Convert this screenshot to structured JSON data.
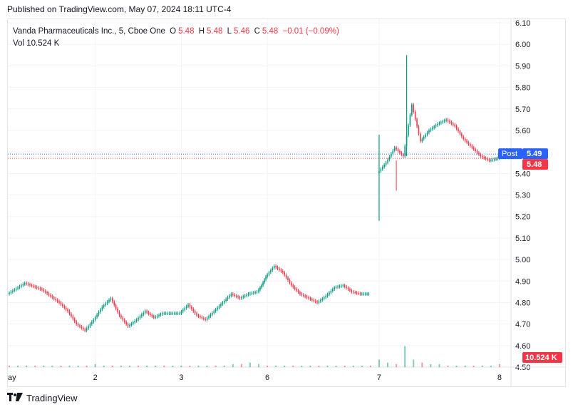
{
  "published": "Published on TradingView.com, May 07, 2024 18:11 UTC-4",
  "legend": {
    "symbol": "Vanda Pharmaceuticals Inc., 5, Cboe One",
    "open_label": "O",
    "open": "5.48",
    "high_label": "H",
    "high": "5.48",
    "low_label": "L",
    "low": "5.46",
    "close_label": "C",
    "close": "5.48",
    "change": "−0.01 (−0.09%)",
    "vol_label": "Vol",
    "vol": "10.524 K"
  },
  "footer": {
    "brand": "TradingView"
  },
  "colors": {
    "up": "#089981",
    "down": "#f23645",
    "post": "#2962ff",
    "grid": "#f0f3fa"
  },
  "chart_data": {
    "type": "candlestick",
    "y_ticks": [
      "6.10",
      "6.00",
      "5.90",
      "5.80",
      "5.70",
      "5.60",
      "5.50",
      "5.40",
      "5.30",
      "5.20",
      "5.10",
      "5.00",
      "4.90",
      "4.80",
      "4.70",
      "4.60",
      "4.50"
    ],
    "ylim": [
      4.5,
      6.1
    ],
    "x_ticks": [
      "ay",
      "2",
      "3",
      "6",
      "7",
      "8"
    ],
    "price_labels": {
      "post_label": "Post",
      "post": "5.49",
      "last": "5.48",
      "volume": "10.524 K"
    },
    "series": [
      {
        "name": "price",
        "points": [
          [
            0,
            4.84
          ],
          [
            2,
            4.89
          ],
          [
            4,
            4.86
          ],
          [
            6,
            4.8
          ],
          [
            7,
            4.76
          ],
          [
            8,
            4.7
          ],
          [
            9,
            4.67
          ],
          [
            10,
            4.72
          ],
          [
            11,
            4.78
          ],
          [
            12,
            4.82
          ],
          [
            13,
            4.74
          ],
          [
            14,
            4.69
          ],
          [
            15,
            4.72
          ],
          [
            16,
            4.76
          ],
          [
            17,
            4.73
          ],
          [
            18,
            4.75
          ],
          [
            20,
            4.75
          ],
          [
            21,
            4.79
          ],
          [
            22,
            4.74
          ],
          [
            23,
            4.72
          ],
          [
            24,
            4.76
          ],
          [
            25,
            4.8
          ],
          [
            26,
            4.84
          ],
          [
            27,
            4.82
          ],
          [
            28,
            4.84
          ],
          [
            29,
            4.85
          ],
          [
            29.5,
            4.88
          ],
          [
            30,
            4.92
          ],
          [
            31,
            4.97
          ],
          [
            32,
            4.94
          ],
          [
            33,
            4.88
          ],
          [
            34,
            4.84
          ],
          [
            35,
            4.82
          ],
          [
            36,
            4.8
          ],
          [
            37,
            4.83
          ],
          [
            38,
            4.87
          ],
          [
            39,
            4.88
          ],
          [
            40,
            4.85
          ],
          [
            41,
            4.84
          ],
          [
            42,
            4.84
          ]
        ]
      },
      {
        "name": "day7",
        "points": [
          [
            43,
            5.4
          ],
          [
            44,
            5.45
          ],
          [
            45,
            5.52
          ],
          [
            46,
            5.48
          ],
          [
            47,
            5.72
          ],
          [
            48,
            5.55
          ],
          [
            49,
            5.6
          ],
          [
            50,
            5.63
          ],
          [
            51,
            5.65
          ],
          [
            52,
            5.62
          ],
          [
            53,
            5.56
          ],
          [
            54,
            5.52
          ],
          [
            55,
            5.48
          ],
          [
            56,
            5.46
          ],
          [
            57,
            5.47
          ],
          [
            58,
            5.5
          ]
        ]
      }
    ],
    "volume": [
      1,
      1,
      1,
      1,
      1,
      1,
      1,
      1,
      1,
      1,
      2,
      1,
      1,
      1,
      1,
      1,
      1,
      1,
      1,
      1,
      1,
      1,
      1,
      1,
      1,
      1,
      2,
      2,
      3,
      2,
      1,
      1,
      1,
      1,
      1,
      1,
      1,
      1,
      1,
      1,
      1,
      1,
      1,
      5,
      3,
      2,
      14,
      5,
      3,
      2,
      2,
      1,
      1,
      1,
      1,
      1,
      1,
      2
    ]
  }
}
